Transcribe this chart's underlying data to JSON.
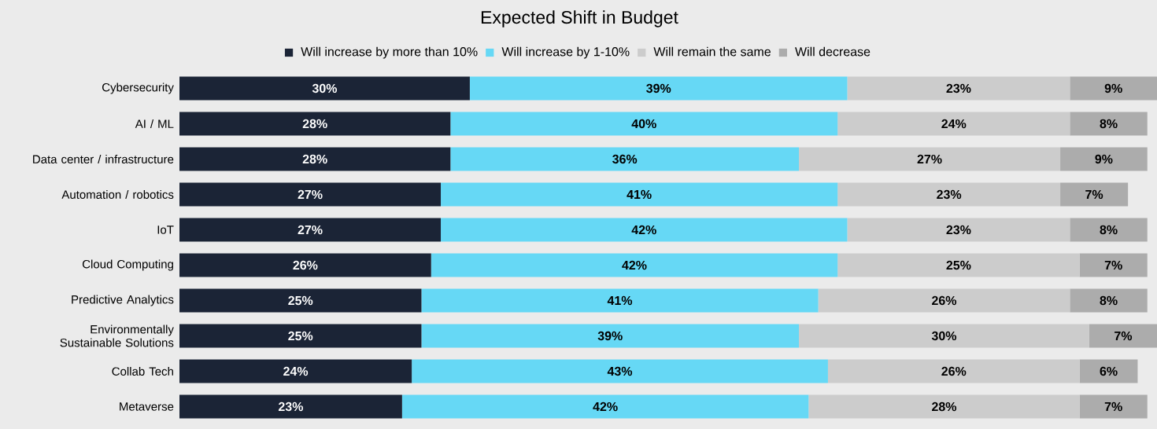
{
  "chart_data": {
    "type": "bar",
    "orientation": "horizontal",
    "stacked": true,
    "legend": "top",
    "title": "Expected Shift in Budget",
    "categories": [
      "Cybersecurity",
      "AI / ML",
      "Data center / infrastructure",
      "Automation / robotics",
      "IoT",
      "Cloud Computing",
      "Predictive Analytics",
      "Environmentally Sustainable Solutions",
      "Collab Tech",
      "Metaverse"
    ],
    "series": [
      {
        "name": "Will increase by more than 10%",
        "color": "#1b2436",
        "values": [
          30,
          28,
          28,
          27,
          27,
          26,
          25,
          25,
          24,
          23
        ],
        "value_labels": [
          "30%",
          "28%",
          "28%",
          "27%",
          "27%",
          "26%",
          "25%",
          "25%",
          "24%",
          "23%"
        ]
      },
      {
        "name": "Will increase by 1-10%",
        "color": "#66d8f5",
        "values": [
          39,
          40,
          36,
          41,
          42,
          42,
          41,
          39,
          43,
          42
        ],
        "value_labels": [
          "39%",
          "40%",
          "36%",
          "41%",
          "42%",
          "42%",
          "41%",
          "39%",
          "43%",
          "42%"
        ]
      },
      {
        "name": "Will remain the same",
        "color": "#cccccc",
        "values": [
          23,
          24,
          27,
          23,
          23,
          25,
          26,
          30,
          26,
          28
        ],
        "value_labels": [
          "23%",
          "24%",
          "27%",
          "23%",
          "23%",
          "25%",
          "26%",
          "30%",
          "26%",
          "28%"
        ]
      },
      {
        "name": "Will decrease",
        "color": "#acacac",
        "values": [
          9,
          8,
          9,
          7,
          8,
          7,
          8,
          7,
          6,
          7
        ],
        "value_labels": [
          "9%",
          "8%",
          "9%",
          "7%",
          "8%",
          "7%",
          "8%",
          "7%",
          "6%",
          "7%"
        ]
      }
    ]
  }
}
